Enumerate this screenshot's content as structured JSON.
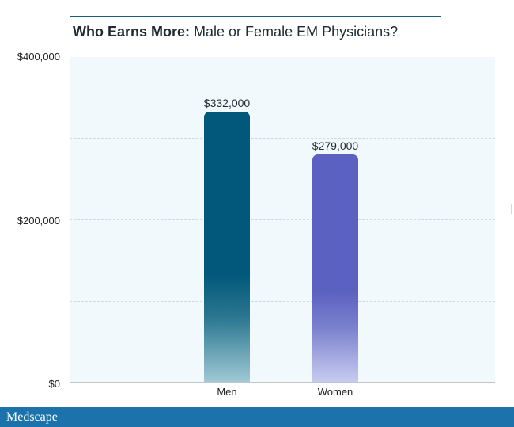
{
  "chart_data": {
    "type": "bar",
    "title_bold": "Who Earns More:",
    "title_rest": "Male or Female EM Physicians?",
    "categories": [
      "Men",
      "Women"
    ],
    "values": [
      332000,
      279000
    ],
    "data_labels": [
      "$332,000",
      "$279,000"
    ],
    "colors": [
      "#01587a",
      "#5b61c0"
    ],
    "y_tick_labels": [
      "$400,000",
      "$200,000",
      "$0"
    ],
    "y_ticks": [
      400000,
      200000,
      0
    ],
    "ylim": [
      0,
      400000
    ],
    "grid": true,
    "xlabel": "",
    "ylabel": ""
  },
  "footer": {
    "brand": "Medscape",
    "color": "#1c73ab"
  }
}
